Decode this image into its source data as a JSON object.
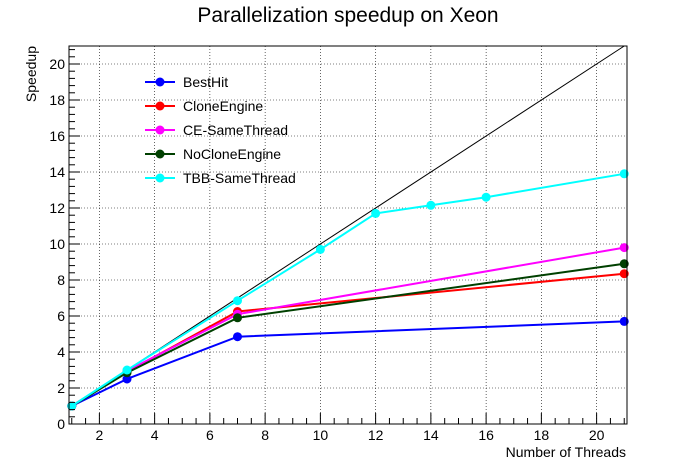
{
  "chart_data": {
    "type": "line",
    "title": "Parallelization speedup on Xeon",
    "xlabel": "Number of Threads",
    "ylabel": "Speedup",
    "xlim": [
      0.9,
      21.1
    ],
    "ylim": [
      0,
      21
    ],
    "xticks": [
      2,
      4,
      6,
      8,
      10,
      12,
      14,
      16,
      18,
      20
    ],
    "yticks": [
      0,
      2,
      4,
      6,
      8,
      10,
      12,
      14,
      16,
      18,
      20
    ],
    "grid": true,
    "legend_position": "top-left",
    "reference_line": {
      "x": [
        1,
        21
      ],
      "y": [
        1,
        21
      ],
      "color": "#000000"
    },
    "series": [
      {
        "name": "BestHit",
        "color": "#0000ff",
        "x": [
          1,
          3,
          7,
          21
        ],
        "y": [
          1.0,
          2.5,
          4.85,
          5.7
        ]
      },
      {
        "name": "CloneEngine",
        "color": "#ff0000",
        "x": [
          1,
          3,
          7,
          21
        ],
        "y": [
          1.0,
          2.9,
          6.25,
          8.35
        ]
      },
      {
        "name": "CE-SameThread",
        "color": "#ff00ff",
        "x": [
          1,
          3,
          7,
          21
        ],
        "y": [
          1.0,
          2.95,
          6.1,
          9.8
        ]
      },
      {
        "name": "NoCloneEngine",
        "color": "#004000",
        "x": [
          1,
          3,
          7,
          21
        ],
        "y": [
          1.0,
          2.85,
          5.9,
          8.9
        ]
      },
      {
        "name": "TBB-SameThread",
        "color": "#00ffff",
        "x": [
          1,
          3,
          7,
          10,
          12,
          14,
          16,
          21
        ],
        "y": [
          1.0,
          3.0,
          6.85,
          9.7,
          11.7,
          12.15,
          12.6,
          13.9
        ]
      }
    ]
  }
}
